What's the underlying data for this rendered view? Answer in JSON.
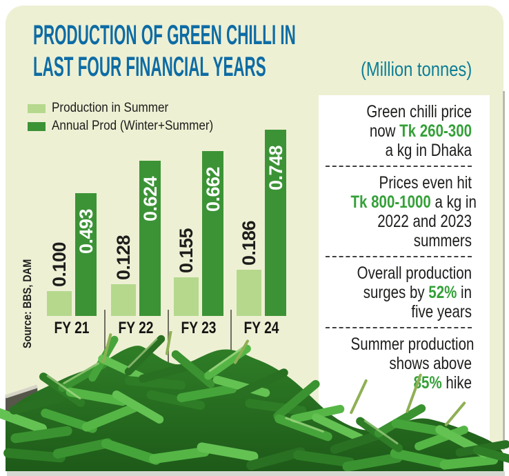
{
  "header": {
    "title_line1": "PRODUCTION OF GREEN CHILLI IN",
    "title_line2": "LAST FOUR FINANCIAL YEARS",
    "unit_note": "(Million tonnes)"
  },
  "legend": {
    "items": [
      {
        "label": "Production in Summer",
        "color": "#b5d88d"
      },
      {
        "label": "Annual Prod (Winter+Summer)",
        "color": "#3c9336"
      }
    ]
  },
  "chart_data": {
    "type": "bar",
    "title": "Production of green chilli in last four financial years",
    "unit": "Million tonnes",
    "categories": [
      "FY 21",
      "FY 22",
      "FY 23",
      "FY 24"
    ],
    "series": [
      {
        "name": "Production in Summer",
        "values": [
          0.1,
          0.128,
          0.155,
          0.186
        ],
        "labels": [
          "0.100",
          "0.128",
          "0.155",
          "0.186"
        ],
        "color": "#b5d88d",
        "label_color": "#1d1d1b",
        "label_position": "above-bar"
      },
      {
        "name": "Annual Prod (Winter+Summer)",
        "values": [
          0.493,
          0.624,
          0.662,
          0.748
        ],
        "labels": [
          "0.493",
          "0.624",
          "0.662",
          "0.748"
        ],
        "color": "#3c9336",
        "label_color": "#ffffff",
        "label_position": "inside-bar-top"
      }
    ],
    "ylim": [
      0,
      0.8
    ],
    "grid": false,
    "legend_position": "top-left",
    "value_label_style": "rotated-90",
    "source": "Source: BBS, DAM"
  },
  "facts": [
    {
      "lines": [
        [
          {
            "t": "Green chilli price"
          }
        ],
        [
          {
            "t": "now "
          },
          {
            "t": "Tk 260-300",
            "accent": true
          }
        ],
        [
          {
            "t": "a kg in Dhaka"
          }
        ]
      ]
    },
    {
      "lines": [
        [
          {
            "t": "Prices even hit"
          }
        ],
        [
          {
            "t": "Tk 800-1000",
            "accent": true
          },
          {
            "t": " a kg in"
          }
        ],
        [
          {
            "t": "2022 and 2023"
          }
        ],
        [
          {
            "t": "summers"
          }
        ]
      ]
    },
    {
      "lines": [
        [
          {
            "t": "Overall production"
          }
        ],
        [
          {
            "t": "surges by "
          },
          {
            "t": "52%",
            "accent": true
          },
          {
            "t": " in"
          }
        ],
        [
          {
            "t": "five years"
          }
        ]
      ]
    },
    {
      "lines": [
        [
          {
            "t": "Summer production"
          }
        ],
        [
          {
            "t": "shows above"
          }
        ],
        [
          {
            "t": "85%",
            "accent": true
          },
          {
            "t": " hike"
          }
        ]
      ]
    }
  ],
  "colors": {
    "panel_bg": "#eef0d4",
    "title_blue": "#0d6ca4",
    "unit_teal": "#0c7e95",
    "bar_light_green": "#b5d88d",
    "bar_dark_green": "#3c9336",
    "accent_green": "#34a038",
    "text_dark": "#1d1d1b"
  }
}
